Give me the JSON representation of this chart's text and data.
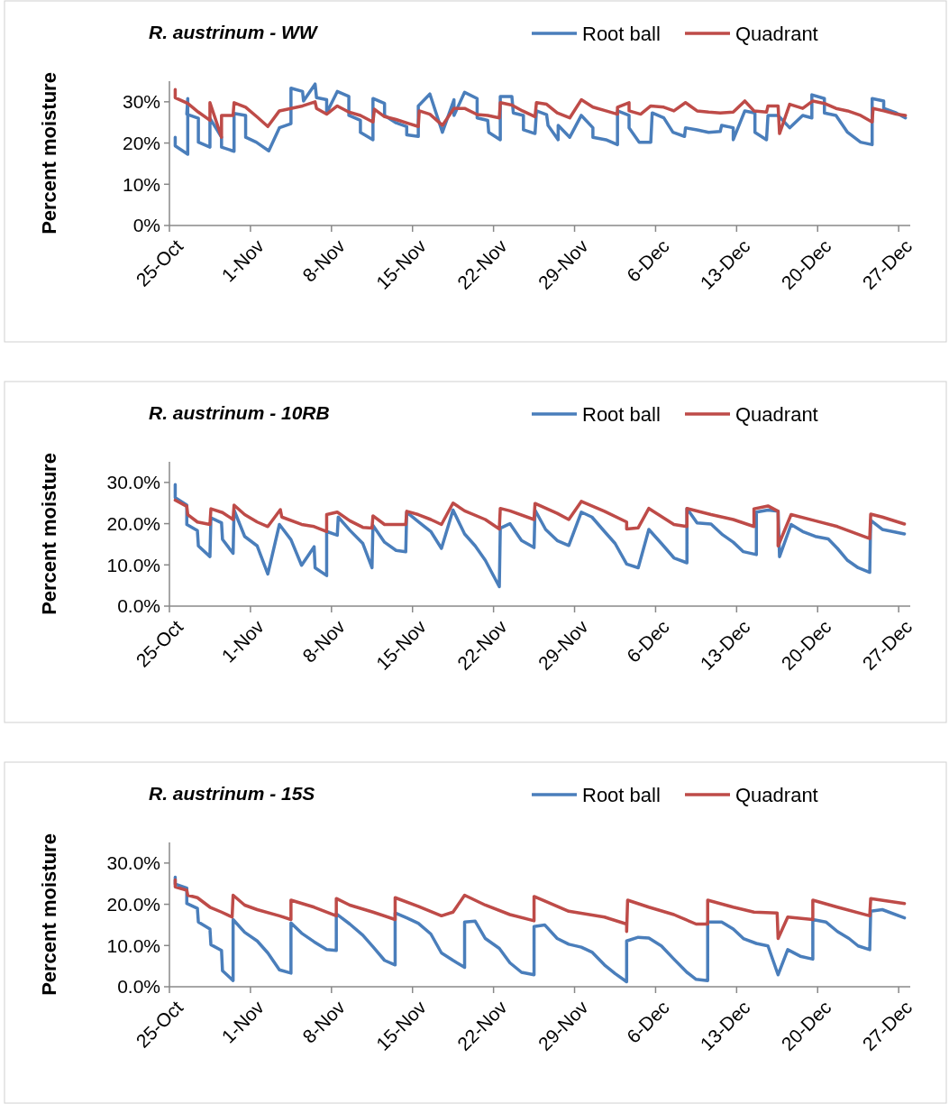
{
  "chart_data": [
    {
      "type": "line",
      "title": "R. austrinum - WW",
      "ylabel": "Percent moisture",
      "legend": "top right",
      "xlim": [
        "--10-25",
        "--12-28"
      ],
      "xticks": [
        {
          "value": "--10-25",
          "label": "25-Oct"
        },
        {
          "value": "--11-01",
          "label": "1-Nov"
        },
        {
          "value": "--11-08",
          "label": "8-Nov"
        },
        {
          "value": "--11-15",
          "label": "15-Nov"
        },
        {
          "value": "--11-22",
          "label": "22-Nov"
        },
        {
          "value": "--11-29",
          "label": "29-Nov"
        },
        {
          "value": "--12-06",
          "label": "6-Dec"
        },
        {
          "value": "--12-13",
          "label": "13-Dec"
        },
        {
          "value": "--12-20",
          "label": "20-Dec"
        },
        {
          "value": "--12-27",
          "label": "27-Dec"
        }
      ],
      "ylim": [
        0,
        35
      ],
      "yticks": [
        {
          "value": 0,
          "label": "0%"
        },
        {
          "value": 10,
          "label": "10%"
        },
        {
          "value": 20,
          "label": "20%"
        },
        {
          "value": 30,
          "label": "30%"
        }
      ],
      "series": [
        {
          "name": "Root ball",
          "color": "#4a7ebb",
          "x": [
            "--10-25T12:00",
            "--10-25T12:00",
            "--10-26T14:00",
            "--10-26T14:00",
            "--10-26T12:00",
            "--10-27T12:00",
            "--10-27T12:00",
            "--10-28T12:00",
            "--10-28T12:00",
            "--10-29T12:00",
            "--10-29T12:00",
            "--10-30T14:00",
            "--10-30T14:00",
            "--10-31T14:00",
            "--10-31T14:00",
            "--11-01T12:00",
            "--11-02T14:00",
            "--11-03T12:00",
            "--11-04T12:00",
            "--11-04T12:00",
            "--11-05T12:00",
            "--11-05T14:00",
            "--11-06T14:00",
            "--11-06T17:00",
            "--11-07T14:00",
            "--11-07T14:00",
            "--11-08T12:00",
            "--11-09T12:00",
            "--11-09T12:00",
            "--11-10T12:00",
            "--11-10T12:00",
            "--11-11T14:00",
            "--11-11T14:00",
            "--11-12T14:00",
            "--11-12T14:00",
            "--11-13T14:00",
            "--11-14T12:00",
            "--11-14T12:00",
            "--11-15T12:00",
            "--11-15T12:00",
            "--11-16T12:00",
            "--11-17T14:00",
            "--11-18T14:00",
            "--11-18T14:00",
            "--11-19T12:00",
            "--11-20T14:00",
            "--11-20T14:00",
            "--11-21T12:00",
            "--11-21T14:00",
            "--11-22T14:00",
            "--11-22T14:00",
            "--11-23T14:00",
            "--11-23T17:00",
            "--11-24T14:00",
            "--11-24T14:00",
            "--11-25T14:00",
            "--11-25T17:00",
            "--11-26T14:00",
            "--11-26T17:00",
            "--11-27T14:00",
            "--11-27T14:00",
            "--11-28T14:00",
            "--11-29T14:00",
            "--11-30T14:00",
            "--11-30T14:00",
            "--12-01T17:00",
            "--12-02T17:00",
            "--12-02T17:00",
            "--12-03T17:00",
            "--12-03T17:00",
            "--12-04T14:00",
            "--12-05T14:00",
            "--12-05T17:00",
            "--12-06T17:00",
            "--12-07T12:00",
            "--12-08T12:00",
            "--12-08T14:00",
            "--12-09T14:00",
            "--12-10T14:00",
            "--12-11T14:00",
            "--12-11T17:00",
            "--12-12T17:00",
            "--12-12T17:00",
            "--12-13T17:00",
            "--12-14T14:00",
            "--12-14T14:00",
            "--12-15T14:00",
            "--12-15T17:00",
            "--12-16T14:00",
            "--12-17T14:00",
            "--12-18T17:00",
            "--12-19T12:00",
            "--12-19T12:00",
            "--12-20T14:00",
            "--12-20T14:00",
            "--12-21T14:00",
            "--12-22T14:00",
            "--12-23T17:00",
            "--12-24T17:00",
            "--12-24T17:00",
            "--12-25T17:00",
            "--12-25T17:00",
            "--12-26T19:00",
            "--12-27T14:00"
          ],
          "values": [
            21.4,
            19.3,
            17.3,
            30.8,
            27,
            26,
            20.2,
            19,
            26,
            21.4,
            19,
            18,
            27.2,
            26.7,
            21.4,
            20.2,
            18.1,
            23.7,
            24.7,
            33.3,
            32.5,
            30.2,
            34.3,
            31,
            30.5,
            27.3,
            32.5,
            31.3,
            26.7,
            25.5,
            22.6,
            20.8,
            30.8,
            29.6,
            26.7,
            24.9,
            24,
            22,
            21.6,
            29,
            31.9,
            22.6,
            30.5,
            26.7,
            32.3,
            30.8,
            26.1,
            25.5,
            22.6,
            20.8,
            31.3,
            31.3,
            27.3,
            26.7,
            23.2,
            22.3,
            27.8,
            26.9,
            24.3,
            20.8,
            24.3,
            21.4,
            26.7,
            23.7,
            21.4,
            20.8,
            19.6,
            27.8,
            26.7,
            23.7,
            20.2,
            20.2,
            27.3,
            26.1,
            22.6,
            21.6,
            23.7,
            23.2,
            22.6,
            22.8,
            24.3,
            23.7,
            20.8,
            27.8,
            27.3,
            22.6,
            20.8,
            26.7,
            26.7,
            23.7,
            26.7,
            26.1,
            31.7,
            30.8,
            27.3,
            26.7,
            22.6,
            20.2,
            19.6,
            30.8,
            30.2,
            28.4,
            27.3,
            26.1
          ]
        },
        {
          "name": "Quadrant",
          "color": "#be4b48",
          "x": [
            "--10-25T12:00",
            "--10-25T12:00",
            "--10-26T14:00",
            "--10-27T12:00",
            "--10-28T12:00",
            "--10-28T12:00",
            "--10-29T12:00",
            "--10-29T12:00",
            "--10-30T12:00",
            "--10-30T14:00",
            "--10-31T14:00",
            "--11-01T14:00",
            "--11-02T12:00",
            "--11-03T12:00",
            "--11-04T12:00",
            "--11-05T12:00",
            "--11-06T14:00",
            "--11-06T17:00",
            "--11-07T14:00",
            "--11-08T12:00",
            "--11-09T12:00",
            "--11-10T12:00",
            "--11-11T14:00",
            "--11-11T17:00",
            "--11-12T14:00",
            "--11-13T14:00",
            "--11-14T17:00",
            "--11-15T12:00",
            "--11-15T14:00",
            "--11-16T12:00",
            "--11-17T14:00",
            "--11-18T14:00",
            "--11-19T12:00",
            "--11-20T14:00",
            "--11-21T12:00",
            "--11-22T12:00",
            "--11-22T14:00",
            "--11-23T14:00",
            "--11-24T12:00",
            "--11-25T14:00",
            "--11-25T17:00",
            "--11-26T14:00",
            "--11-27T12:00",
            "--11-28T14:00",
            "--11-29T14:00",
            "--11-30T14:00",
            "--12-01T17:00",
            "--12-02T17:00",
            "--12-02T17:00",
            "--12-03T17:00",
            "--12-03T17:00",
            "--12-04T17:00",
            "--12-05T14:00",
            "--12-06T17:00",
            "--12-07T14:00",
            "--12-08T14:00",
            "--12-09T14:00",
            "--12-10T14:00",
            "--12-11T14:00",
            "--12-12T17:00",
            "--12-13T17:00",
            "--12-14T12:00",
            "--12-15T14:00",
            "--12-15T17:00",
            "--12-16T14:00",
            "--12-16T17:00",
            "--12-17T14:00",
            "--12-18T17:00",
            "--12-19T14:00",
            "--12-20T14:00",
            "--12-21T14:00",
            "--12-22T14:00",
            "--12-23T17:00",
            "--12-24T17:00",
            "--12-24T19:00",
            "--12-25T17:00",
            "--12-26T19:00",
            "--12-27T14:00"
          ],
          "values": [
            33,
            31,
            29.6,
            27.5,
            25.5,
            29.8,
            21.4,
            26.7,
            26.7,
            29.8,
            28.7,
            26.3,
            24,
            27.8,
            28.4,
            29,
            30,
            28.4,
            27,
            29,
            27.5,
            26.7,
            25.1,
            28.2,
            26.4,
            25.7,
            24.7,
            24,
            27.8,
            27,
            24.3,
            28.4,
            28.4,
            26.9,
            26.7,
            26.1,
            29.8,
            29.2,
            27.8,
            26.4,
            29.8,
            29.4,
            27.3,
            26.1,
            30.5,
            28.7,
            27.8,
            27,
            28.7,
            29.8,
            27.8,
            27,
            29,
            28.7,
            27.8,
            29.8,
            27.8,
            27.5,
            27.3,
            27.5,
            30.2,
            27.8,
            27.5,
            29,
            29,
            22.3,
            29.4,
            28.4,
            30.2,
            29.6,
            28.4,
            27.8,
            26.7,
            25.1,
            28.4,
            27.8,
            27,
            26.7
          ]
        }
      ]
    },
    {
      "type": "line",
      "title": "R. austrinum - 10RB",
      "ylabel": "Percent moisture",
      "legend": "top right",
      "xlim": [
        "--10-25",
        "--12-28"
      ],
      "xticks": [
        {
          "value": "--10-25",
          "label": "25-Oct"
        },
        {
          "value": "--11-01",
          "label": "1-Nov"
        },
        {
          "value": "--11-08",
          "label": "8-Nov"
        },
        {
          "value": "--11-15",
          "label": "15-Nov"
        },
        {
          "value": "--11-22",
          "label": "22-Nov"
        },
        {
          "value": "--11-29",
          "label": "29-Nov"
        },
        {
          "value": "--12-06",
          "label": "6-Dec"
        },
        {
          "value": "--12-13",
          "label": "13-Dec"
        },
        {
          "value": "--12-20",
          "label": "20-Dec"
        },
        {
          "value": "--12-27",
          "label": "27-Dec"
        }
      ],
      "ylim": [
        0,
        35
      ],
      "yticks": [
        {
          "value": 0,
          "label": "0.0%"
        },
        {
          "value": 10,
          "label": "10.0%"
        },
        {
          "value": 20,
          "label": "20.0%"
        },
        {
          "value": 30,
          "label": "30.0%"
        }
      ],
      "series": [
        {
          "name": "Root ball",
          "color": "#4a7ebb",
          "x": [
            "--10-25T12:00",
            "--10-25T12:00",
            "--10-26T12:00",
            "--10-26T12:00",
            "--10-27T10:00",
            "--10-27T12:00",
            "--10-28T12:00",
            "--10-28T14:00",
            "--10-29T12:00",
            "--10-29T14:00",
            "--10-30T12:00",
            "--10-30T14:00",
            "--10-31T12:00",
            "--11-01T14:00",
            "--11-02T12:00",
            "--11-03T12:00",
            "--11-04T12:00",
            "--11-05T10:00",
            "--11-06T12:00",
            "--11-06T14:00",
            "--11-07T14:00",
            "--11-07T14:00",
            "--11-08T12:00",
            "--11-08T14:00",
            "--11-09T14:00",
            "--11-10T17:00",
            "--11-11T12:00",
            "--11-11T14:00",
            "--11-12T14:00",
            "--11-13T14:00",
            "--11-14T10:00",
            "--11-14T12:00",
            "--11-15T12:00",
            "--11-16T14:00",
            "--11-17T12:00",
            "--11-18T12:00",
            "--11-19T12:00",
            "--11-20T10:00",
            "--11-21T07:00",
            "--11-22T12:00",
            "--11-22T14:00",
            "--11-23T10:00",
            "--11-24T10:00",
            "--11-25T12:00",
            "--11-25T14:00",
            "--11-26T12:00",
            "--11-27T12:00",
            "--11-28T12:00",
            "--11-29T14:00",
            "--11-30T12:00",
            "--12-01T14:00",
            "--12-02T12:00",
            "--12-03T12:00",
            "--12-04T12:00",
            "--12-05T10:00",
            "--12-06T12:00",
            "--12-07T14:00",
            "--12-08T17:00",
            "--12-08T17:00",
            "--12-09T14:00",
            "--12-10T19:00",
            "--12-11T19:00",
            "--12-12T17:00",
            "--12-13T14:00",
            "--12-14T17:00",
            "--12-14T17:00",
            "--12-15T17:00",
            "--12-16T14:00",
            "--12-16T17:00",
            "--12-17T17:00",
            "--12-18T17:00",
            "--12-19T19:00",
            "--12-20T22:00",
            "--12-21T17:00",
            "--12-22T14:00",
            "--12-23T12:00",
            "--12-24T12:00",
            "--12-24T14:00",
            "--12-25T14:00",
            "--12-27T12:00"
          ],
          "values": [
            29.5,
            26.3,
            24.5,
            19.8,
            18.3,
            14.6,
            12,
            21.4,
            20.2,
            16.2,
            12.8,
            23.3,
            16.9,
            14.6,
            7.8,
            19.8,
            16.1,
            9.9,
            14.4,
            9.3,
            7.4,
            18.1,
            17.2,
            21.6,
            18.4,
            15.2,
            9.3,
            19.6,
            15.5,
            13.5,
            13.2,
            22.8,
            20.5,
            18.1,
            14,
            23.3,
            17.5,
            14.6,
            11.1,
            4.7,
            18.9,
            20,
            15.9,
            14.2,
            23.3,
            18.6,
            15.9,
            14.7,
            22.8,
            21.6,
            18.1,
            15.2,
            10.2,
            9.3,
            18.6,
            15.2,
            11.7,
            10.5,
            23.7,
            20.2,
            19.9,
            17.3,
            15.5,
            13.2,
            12.5,
            22.8,
            23.3,
            23,
            12,
            19.8,
            18.1,
            16.9,
            16.3,
            14,
            11.1,
            9.3,
            8.2,
            20.8,
            18.6,
            17.5
          ]
        },
        {
          "name": "Quadrant",
          "color": "#be4b48",
          "x": [
            "--10-25T12:00",
            "--10-26T12:00",
            "--10-26T14:00",
            "--10-27T10:00",
            "--10-28T12:00",
            "--10-28T14:00",
            "--10-29T14:00",
            "--10-30T12:00",
            "--10-30T14:00",
            "--10-31T12:00",
            "--11-01T14:00",
            "--11-02T12:00",
            "--11-03T14:00",
            "--11-03T17:00",
            "--11-05T10:00",
            "--11-06T12:00",
            "--11-07T14:00",
            "--11-07T14:00",
            "--11-08T12:00",
            "--11-09T14:00",
            "--11-10T17:00",
            "--11-11T12:00",
            "--11-11T14:00",
            "--11-12T14:00",
            "--11-14T10:00",
            "--11-14T12:00",
            "--11-15T12:00",
            "--11-16T14:00",
            "--11-17T12:00",
            "--11-18T12:00",
            "--11-19T12:00",
            "--11-21T07:00",
            "--11-22T12:00",
            "--11-22T14:00",
            "--11-23T10:00",
            "--11-25T12:00",
            "--11-25T14:00",
            "--11-27T12:00",
            "--11-28T12:00",
            "--11-29T14:00",
            "--12-01T14:00",
            "--12-03T12:00",
            "--12-03T12:00",
            "--12-04T12:00",
            "--12-05T10:00",
            "--12-07T14:00",
            "--12-08T17:00",
            "--12-08T17:00",
            "--12-10T19:00",
            "--12-12T17:00",
            "--12-14T12:00",
            "--12-14T12:00",
            "--12-15T17:00",
            "--12-16T14:00",
            "--12-16T14:00",
            "--12-17T17:00",
            "--12-19T19:00",
            "--12-21T17:00",
            "--12-24T12:00",
            "--12-24T14:00",
            "--12-25T14:00",
            "--12-27T12:00"
          ],
          "values": [
            25.7,
            24.2,
            22.2,
            20.4,
            19.8,
            23.6,
            22.7,
            21,
            24.5,
            22.2,
            20.4,
            19.3,
            23.4,
            21.6,
            19.8,
            19.3,
            18.1,
            22.2,
            22.8,
            20.7,
            19.1,
            18.9,
            21.9,
            19.8,
            19.8,
            23,
            22.2,
            21,
            19.8,
            25,
            23.1,
            21,
            18.7,
            23.7,
            23.1,
            21,
            24.9,
            22.5,
            21,
            25.4,
            23,
            20.4,
            18.7,
            19,
            23.7,
            19.8,
            19.3,
            23.7,
            22.2,
            21,
            19.3,
            23.6,
            24.3,
            23,
            14.6,
            22.2,
            20.7,
            19.3,
            16.4,
            22.3,
            21.6,
            19.9
          ]
        }
      ]
    },
    {
      "type": "line",
      "title": "R. austrinum - 15S",
      "ylabel": "Percent moisture",
      "legend": "top right",
      "xlim": [
        "--10-25",
        "--12-28"
      ],
      "xticks": [
        {
          "value": "--10-25",
          "label": "25-Oct"
        },
        {
          "value": "--11-01",
          "label": "1-Nov"
        },
        {
          "value": "--11-08",
          "label": "8-Nov"
        },
        {
          "value": "--11-15",
          "label": "15-Nov"
        },
        {
          "value": "--11-22",
          "label": "22-Nov"
        },
        {
          "value": "--11-29",
          "label": "29-Nov"
        },
        {
          "value": "--12-06",
          "label": "6-Dec"
        },
        {
          "value": "--12-13",
          "label": "13-Dec"
        },
        {
          "value": "--12-20",
          "label": "20-Dec"
        },
        {
          "value": "--12-27",
          "label": "27-Dec"
        }
      ],
      "ylim": [
        0,
        35
      ],
      "yticks": [
        {
          "value": 0,
          "label": "0.0%"
        },
        {
          "value": 10,
          "label": "10.0%"
        },
        {
          "value": 20,
          "label": "20.0%"
        },
        {
          "value": 30,
          "label": "30.0%"
        }
      ],
      "series": [
        {
          "name": "Root ball",
          "color": "#4a7ebb",
          "x": [
            "--10-25T12:00",
            "--10-25T12:00",
            "--10-26T12:00",
            "--10-26T12:00",
            "--10-27T10:00",
            "--10-27T12:00",
            "--10-28T12:00",
            "--10-28T14:00",
            "--10-29T12:00",
            "--10-29T14:00",
            "--10-30T12:00",
            "--10-30T12:00",
            "--10-31T12:00",
            "--11-01T14:00",
            "--11-02T12:00",
            "--11-03T12:00",
            "--11-04T12:00",
            "--11-04T12:00",
            "--11-05T10:00",
            "--11-06T12:00",
            "--11-07T14:00",
            "--11-08T10:00",
            "--11-08T10:00",
            "--11-09T14:00",
            "--11-10T17:00",
            "--11-11T14:00",
            "--11-12T14:00",
            "--11-13T12:00",
            "--11-13T12:00",
            "--11-14T12:00",
            "--11-15T12:00",
            "--11-16T14:00",
            "--11-17T12:00",
            "--11-18T12:00",
            "--11-19T12:00",
            "--11-19T12:00",
            "--11-20T10:00",
            "--11-21T07:00",
            "--11-22T12:00",
            "--11-23T10:00",
            "--11-24T10:00",
            "--11-25T12:00",
            "--11-25T12:00",
            "--11-26T10:00",
            "--11-27T12:00",
            "--11-28T12:00",
            "--11-29T14:00",
            "--11-30T12:00",
            "--12-01T14:00",
            "--12-02T12:00",
            "--12-03T12:00",
            "--12-03T12:00",
            "--12-04T12:00",
            "--12-05T10:00",
            "--12-06T12:00",
            "--12-07T14:00",
            "--12-08T17:00",
            "--12-09T12:00",
            "--12-10T12:00",
            "--12-10T12:00",
            "--12-11T17:00",
            "--12-12T17:00",
            "--12-13T14:00",
            "--12-14T17:00",
            "--12-15T17:00",
            "--12-16T14:00",
            "--12-17T10:00",
            "--12-18T12:00",
            "--12-19T14:00",
            "--12-19T14:00",
            "--12-20T17:00",
            "--12-21T17:00",
            "--12-22T17:00",
            "--12-23T12:00",
            "--12-24T12:00",
            "--12-24T14:00",
            "--12-25T14:00",
            "--12-27T12:00"
          ],
          "values": [
            26.6,
            24.9,
            23.9,
            20.2,
            19,
            15.7,
            14,
            10.2,
            8.8,
            3.9,
            1.5,
            16.3,
            13.2,
            11.1,
            8.2,
            4.1,
            3.3,
            15.5,
            13,
            10.9,
            9,
            8.8,
            17.7,
            15.2,
            12.5,
            9.7,
            6.4,
            5.3,
            17.9,
            16.7,
            15.4,
            12.8,
            8.2,
            6.4,
            4.7,
            15.7,
            15.9,
            11.7,
            9.3,
            5.8,
            3.5,
            2.9,
            14.6,
            15,
            11.7,
            10.3,
            9.6,
            8.4,
            5.3,
            3.2,
            1.2,
            11.1,
            12,
            11.8,
            9.9,
            6.7,
            3.5,
            1.8,
            1.5,
            15.7,
            15.7,
            14,
            11.7,
            10.5,
            9.9,
            2.9,
            9,
            7.4,
            6.7,
            16.3,
            15.7,
            13.4,
            11.7,
            9.9,
            9,
            18.3,
            18.7,
            16.7
          ]
        },
        {
          "name": "Quadrant",
          "color": "#be4b48",
          "x": [
            "--10-25T12:00",
            "--10-25T12:00",
            "--10-26T12:00",
            "--10-26T14:00",
            "--10-27T10:00",
            "--10-28T12:00",
            "--10-29T12:00",
            "--10-30T10:00",
            "--10-30T12:00",
            "--10-31T12:00",
            "--11-01T14:00",
            "--11-03T12:00",
            "--11-04T12:00",
            "--11-04T12:00",
            "--11-06T12:00",
            "--11-08T10:00",
            "--11-08T10:00",
            "--11-09T14:00",
            "--11-11T14:00",
            "--11-13T12:00",
            "--11-13T12:00",
            "--11-15T12:00",
            "--11-17T12:00",
            "--11-18T12:00",
            "--11-19T12:00",
            "--11-21T07:00",
            "--11-23T10:00",
            "--11-25T12:00",
            "--11-25T12:00",
            "--11-26T10:00",
            "--11-28T12:00",
            "--12-01T14:00",
            "--12-03T12:00",
            "--12-03T12:00",
            "--12-03T14:00",
            "--12-05T10:00",
            "--12-07T14:00",
            "--12-09T12:00",
            "--12-10T12:00",
            "--12-10T12:00",
            "--12-12T17:00",
            "--12-14T12:00",
            "--12-16T12:00",
            "--12-16T14:00",
            "--12-17T10:00",
            "--12-19T14:00",
            "--12-19T14:00",
            "--12-21T17:00",
            "--12-24T12:00",
            "--12-24T14:00",
            "--12-27T12:00"
          ],
          "values": [
            25.9,
            24.2,
            23.4,
            22.2,
            21.6,
            19.3,
            18.1,
            16.9,
            22.2,
            19.8,
            18.7,
            17.2,
            16.3,
            21,
            19.3,
            17.2,
            21.4,
            19.8,
            18.1,
            16.3,
            21.6,
            19.5,
            17.2,
            18.1,
            22.2,
            19.8,
            17.5,
            16,
            21.9,
            20.8,
            18.3,
            16.9,
            15.2,
            13.4,
            21,
            19.3,
            17.5,
            15.2,
            15.2,
            21,
            19.3,
            18.1,
            17.9,
            11.7,
            16.9,
            16.3,
            21,
            19.3,
            17.2,
            21.4,
            20.2
          ]
        }
      ]
    }
  ]
}
